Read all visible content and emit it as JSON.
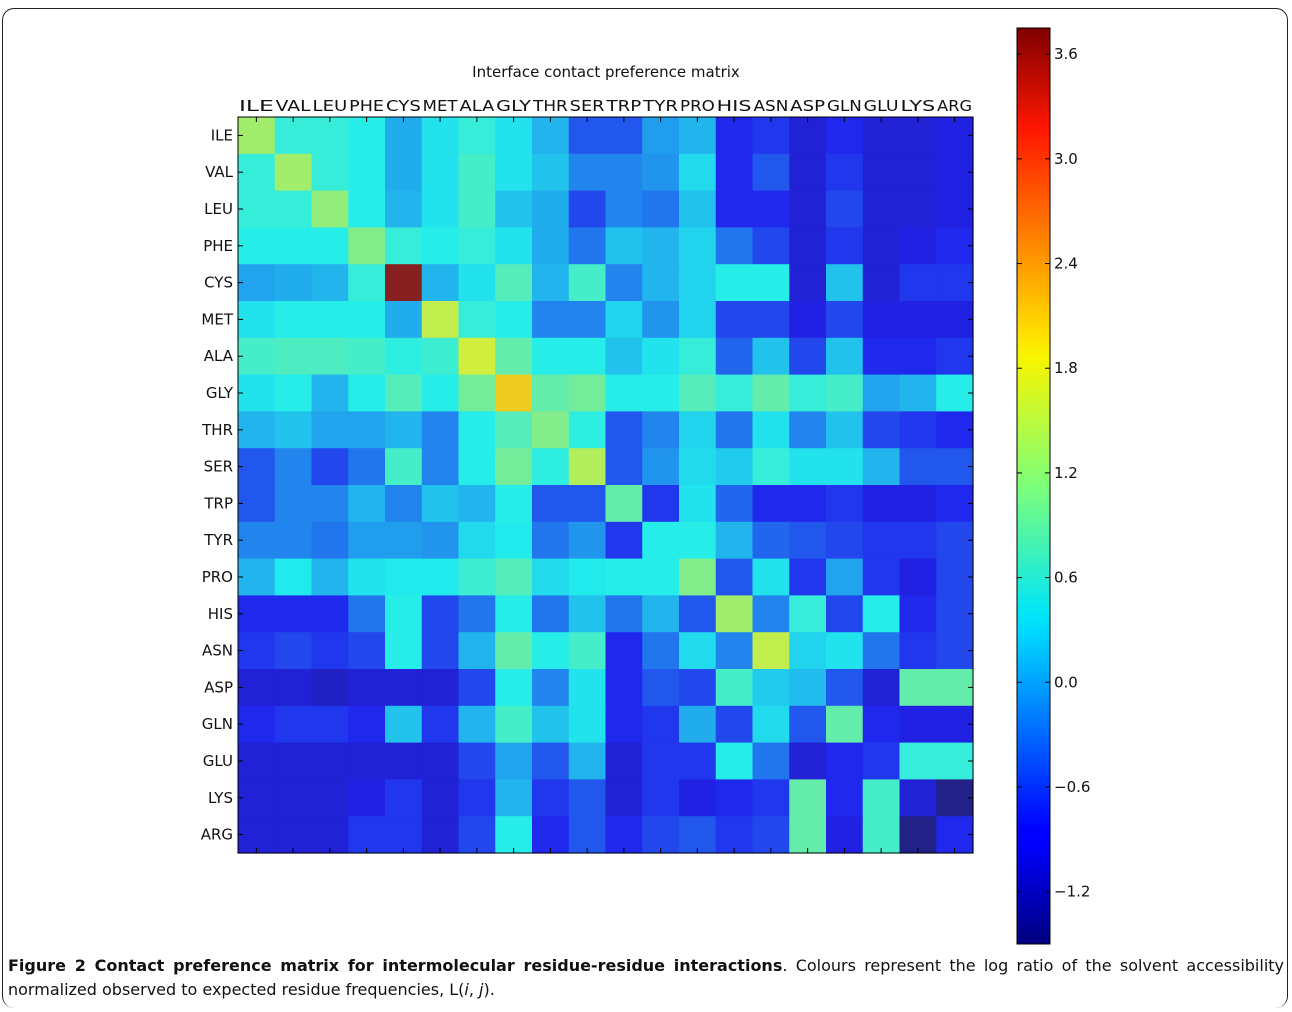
{
  "chart_data": {
    "type": "heatmap",
    "title": "Interface contact preference matrix",
    "residues": [
      "ILE",
      "VAL",
      "LEU",
      "PHE",
      "CYS",
      "MET",
      "ALA",
      "GLY",
      "THR",
      "SER",
      "TRP",
      "TYR",
      "PRO",
      "HIS",
      "ASN",
      "ASP",
      "GLN",
      "GLU",
      "LYS",
      "ARG"
    ],
    "colorbar": {
      "vmin": -1.5,
      "vmax": 3.75,
      "ticks": [
        3.6,
        3.0,
        2.4,
        1.8,
        1.2,
        0.6,
        0.0,
        -0.6,
        -1.2
      ],
      "tick_labels": [
        "3.6",
        "3.0",
        "2.4",
        "1.8",
        "1.2",
        "0.6",
        "0.0",
        "−0.6",
        "−1.2"
      ]
    },
    "values": [
      [
        1.3,
        0.6,
        0.6,
        0.5,
        0.05,
        0.4,
        0.6,
        0.4,
        0.1,
        -0.5,
        -0.5,
        -0.05,
        0.1,
        -0.8,
        -0.7,
        -1.0,
        -0.8,
        -1.0,
        -1.0,
        -0.9
      ],
      [
        0.6,
        1.3,
        0.6,
        0.5,
        0.05,
        0.4,
        0.7,
        0.4,
        0.2,
        -0.2,
        -0.2,
        -0.1,
        0.35,
        -0.8,
        -0.5,
        -1.0,
        -0.7,
        -1.0,
        -1.0,
        -0.9
      ],
      [
        0.6,
        0.6,
        1.2,
        0.5,
        0.1,
        0.4,
        0.7,
        0.2,
        0.05,
        -0.6,
        -0.2,
        -0.3,
        0.2,
        -0.8,
        -0.8,
        -1.0,
        -0.6,
        -1.0,
        -1.0,
        -0.9
      ],
      [
        0.5,
        0.5,
        0.5,
        1.1,
        0.6,
        0.5,
        0.6,
        0.4,
        0.05,
        -0.3,
        0.2,
        0.1,
        0.3,
        -0.3,
        -0.6,
        -1.0,
        -0.7,
        -1.0,
        -0.9,
        -0.8
      ],
      [
        0.0,
        0.05,
        0.1,
        0.6,
        3.75,
        0.1,
        0.4,
        0.8,
        0.1,
        0.7,
        -0.2,
        0.1,
        0.3,
        0.5,
        0.5,
        -1.0,
        0.2,
        -1.0,
        -0.7,
        -0.7
      ],
      [
        0.4,
        0.5,
        0.5,
        0.5,
        0.05,
        1.5,
        0.6,
        0.5,
        -0.2,
        -0.2,
        0.3,
        -0.1,
        0.3,
        -0.6,
        -0.6,
        -0.9,
        -0.6,
        -0.9,
        -0.9,
        -0.9
      ],
      [
        0.7,
        0.75,
        0.75,
        0.7,
        0.55,
        0.65,
        1.6,
        0.9,
        0.5,
        0.5,
        0.2,
        0.4,
        0.6,
        -0.4,
        0.2,
        -0.6,
        0.2,
        -0.8,
        -0.8,
        -0.7
      ],
      [
        0.4,
        0.5,
        0.1,
        0.5,
        0.8,
        0.5,
        1.0,
        2.0,
        0.9,
        1.0,
        0.5,
        0.5,
        0.8,
        0.6,
        0.9,
        0.6,
        0.7,
        0.0,
        0.1,
        0.5
      ],
      [
        0.1,
        0.2,
        0.0,
        0.0,
        0.1,
        -0.2,
        0.5,
        0.8,
        1.1,
        0.55,
        -0.5,
        -0.2,
        0.3,
        -0.3,
        0.4,
        -0.2,
        0.2,
        -0.6,
        -0.7,
        -0.8
      ],
      [
        -0.5,
        -0.2,
        -0.6,
        -0.3,
        0.7,
        -0.2,
        0.5,
        1.0,
        0.55,
        1.4,
        -0.5,
        -0.1,
        0.35,
        0.25,
        0.6,
        0.4,
        0.4,
        0.1,
        -0.5,
        -0.5
      ],
      [
        -0.5,
        -0.2,
        -0.2,
        0.1,
        -0.2,
        0.2,
        0.1,
        0.5,
        -0.5,
        -0.5,
        0.9,
        -0.7,
        0.4,
        -0.4,
        -0.8,
        -0.8,
        -0.7,
        -0.9,
        -0.9,
        -0.8
      ],
      [
        -0.2,
        -0.2,
        -0.3,
        -0.05,
        -0.05,
        -0.1,
        0.35,
        0.45,
        -0.3,
        -0.1,
        -0.7,
        0.5,
        0.5,
        0.1,
        -0.4,
        -0.5,
        -0.6,
        -0.7,
        -0.7,
        -0.6
      ],
      [
        0.1,
        0.45,
        0.1,
        0.4,
        0.45,
        0.45,
        0.65,
        0.8,
        0.35,
        0.45,
        0.5,
        0.5,
        1.1,
        -0.5,
        0.4,
        -0.7,
        0.0,
        -0.7,
        -0.9,
        -0.6
      ],
      [
        -0.8,
        -0.8,
        -0.8,
        -0.3,
        0.5,
        -0.6,
        -0.3,
        0.5,
        -0.3,
        0.2,
        -0.3,
        0.1,
        -0.5,
        1.3,
        -0.2,
        0.6,
        -0.6,
        0.5,
        -0.8,
        -0.6
      ],
      [
        -0.7,
        -0.6,
        -0.7,
        -0.6,
        0.5,
        -0.6,
        0.1,
        0.9,
        0.5,
        0.7,
        -0.8,
        -0.3,
        0.35,
        -0.2,
        1.5,
        0.3,
        0.4,
        -0.3,
        -0.7,
        -0.6
      ],
      [
        -1.0,
        -1.0,
        -1.1,
        -1.0,
        -1.0,
        -1.0,
        -0.6,
        0.5,
        -0.2,
        0.4,
        -0.8,
        -0.5,
        -0.6,
        0.7,
        0.25,
        0.15,
        -0.5,
        -1.0,
        0.9,
        0.9
      ],
      [
        -0.8,
        -0.7,
        -0.7,
        -0.8,
        0.2,
        -0.7,
        0.1,
        0.7,
        0.2,
        0.4,
        -0.8,
        -0.7,
        0.05,
        -0.6,
        0.35,
        -0.5,
        0.9,
        -0.8,
        -0.9,
        -0.9
      ],
      [
        -1.0,
        -1.0,
        -1.0,
        -1.0,
        -1.0,
        -1.0,
        -0.6,
        0.0,
        -0.5,
        0.1,
        -1.0,
        -0.7,
        -0.7,
        0.5,
        -0.3,
        -1.0,
        -0.8,
        -0.7,
        0.6,
        0.6
      ],
      [
        -1.0,
        -1.0,
        -1.0,
        -0.9,
        -0.7,
        -1.0,
        -0.7,
        0.1,
        -0.7,
        -0.5,
        -1.0,
        -0.7,
        -0.9,
        -0.8,
        -0.7,
        0.9,
        -0.8,
        0.7,
        -1.0,
        -1.5
      ],
      [
        -1.0,
        -1.0,
        -1.0,
        -0.7,
        -0.7,
        -1.0,
        -0.6,
        0.5,
        -0.8,
        -0.5,
        -0.8,
        -0.6,
        -0.5,
        -0.7,
        -0.6,
        0.9,
        -0.9,
        0.7,
        -1.5,
        -0.8
      ]
    ]
  },
  "caption": {
    "figure_label": "Figure 2",
    "bold_title": "Contact preference matrix for intermolecular residue-residue interactions",
    "text_before_italic": ". Colours represent the log ratio of the solvent accessibility normalized observed to expected residue frequencies, L(",
    "italic_i": "i",
    "comma": ", ",
    "italic_j": "j",
    "text_end": ")."
  }
}
